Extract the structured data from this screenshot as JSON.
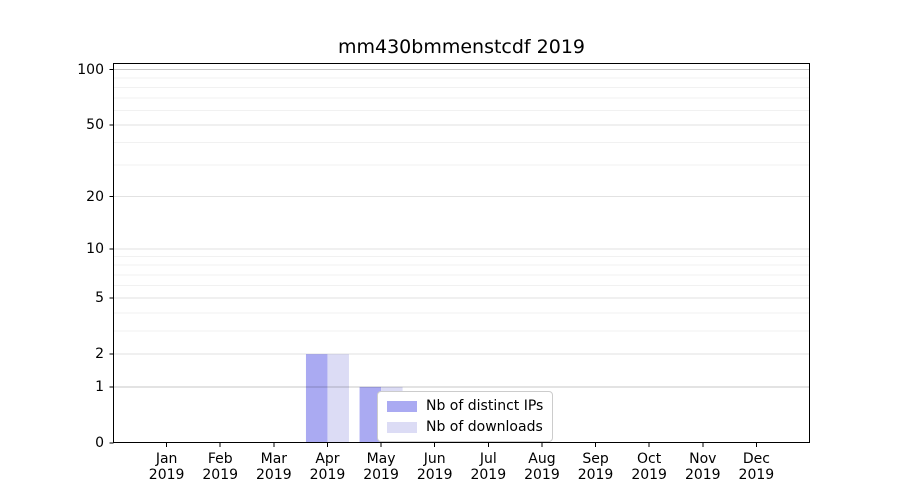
{
  "chart_data": {
    "type": "bar",
    "title": "mm430bmmenstcdf 2019",
    "categories": [
      "Jan",
      "Feb",
      "Mar",
      "Apr",
      "May",
      "Jun",
      "Jul",
      "Aug",
      "Sep",
      "Oct",
      "Nov",
      "Dec"
    ],
    "x_year": "2019",
    "series": [
      {
        "name": "Nb of distinct IPs",
        "color": "#aaaaf2",
        "values": [
          0,
          0,
          0,
          2,
          1,
          0,
          0,
          0,
          0,
          0,
          0,
          0
        ]
      },
      {
        "name": "Nb of downloads",
        "color": "#dcdcf5",
        "values": [
          0,
          0,
          0,
          2,
          1,
          0,
          0,
          0,
          0,
          0,
          0,
          0
        ]
      }
    ],
    "xlabel": "",
    "ylabel": "",
    "y_axis": {
      "scale": "log1p",
      "ticks": [
        0,
        1,
        2,
        5,
        10,
        20,
        50,
        100
      ],
      "minor_gridlines": [
        3,
        4,
        6,
        7,
        8,
        9,
        30,
        40,
        60,
        70,
        80,
        90
      ],
      "ylim": [
        0,
        108.6
      ]
    },
    "grid": "both",
    "legend_position": "lower center",
    "colors": {
      "axis": "#000000",
      "background": "#ffffff"
    }
  }
}
